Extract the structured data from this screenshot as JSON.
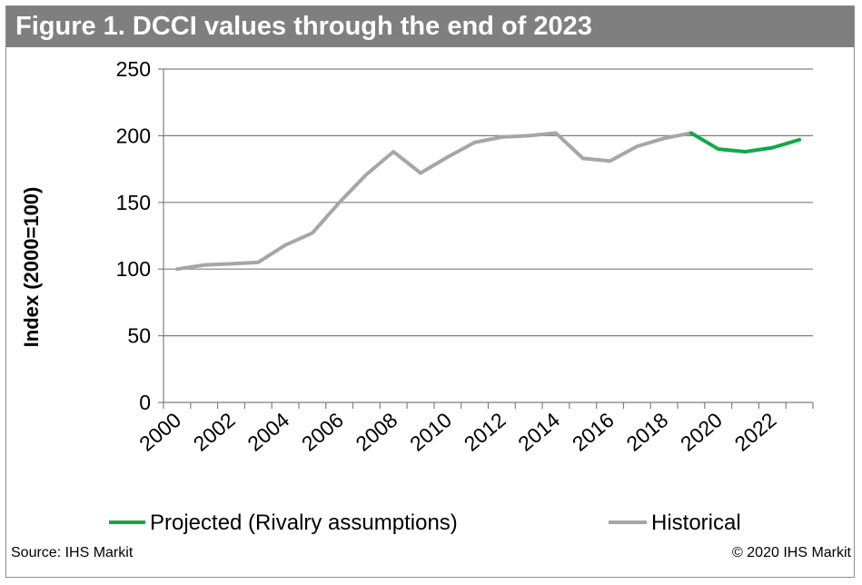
{
  "title": "Figure 1. DCCI values through the end of 2023",
  "source": "Source: IHS Markit",
  "copyright": "© 2020 IHS Markit",
  "colors": {
    "title_bg": "#7f7f7f",
    "historical": "#a6a6a6",
    "projected": "#12a84a",
    "grid": "#7f7f7f"
  },
  "chart_data": {
    "type": "line",
    "ylabel": "Index (2000=100)",
    "xlabel": "",
    "ylim": [
      0,
      250
    ],
    "yticks": [
      0,
      50,
      100,
      150,
      200,
      250
    ],
    "xlim": [
      2000,
      2024
    ],
    "xticks": [
      2000,
      2002,
      2004,
      2006,
      2008,
      2010,
      2012,
      2014,
      2016,
      2018,
      2020,
      2022
    ],
    "grid": "horizontal",
    "legend_position": "bottom",
    "series": [
      {
        "name": "Projected (Rivalry assumptions)",
        "x": [
          2019.5,
          2020.5,
          2021.5,
          2022.5,
          2023.5
        ],
        "y": [
          202,
          190,
          188,
          191,
          197
        ]
      },
      {
        "name": "Historical",
        "x": [
          2000.5,
          2001.5,
          2002.5,
          2003.5,
          2004.5,
          2005.5,
          2006.5,
          2007.5,
          2008.5,
          2009.5,
          2010.5,
          2011.5,
          2012.5,
          2013.5,
          2014.5,
          2015.5,
          2016.5,
          2017.5,
          2018.5,
          2019.5
        ],
        "y": [
          100,
          103,
          104,
          105,
          118,
          127,
          150,
          171,
          188,
          172,
          184,
          195,
          199,
          200,
          202,
          183,
          181,
          192,
          198,
          202
        ]
      }
    ]
  }
}
